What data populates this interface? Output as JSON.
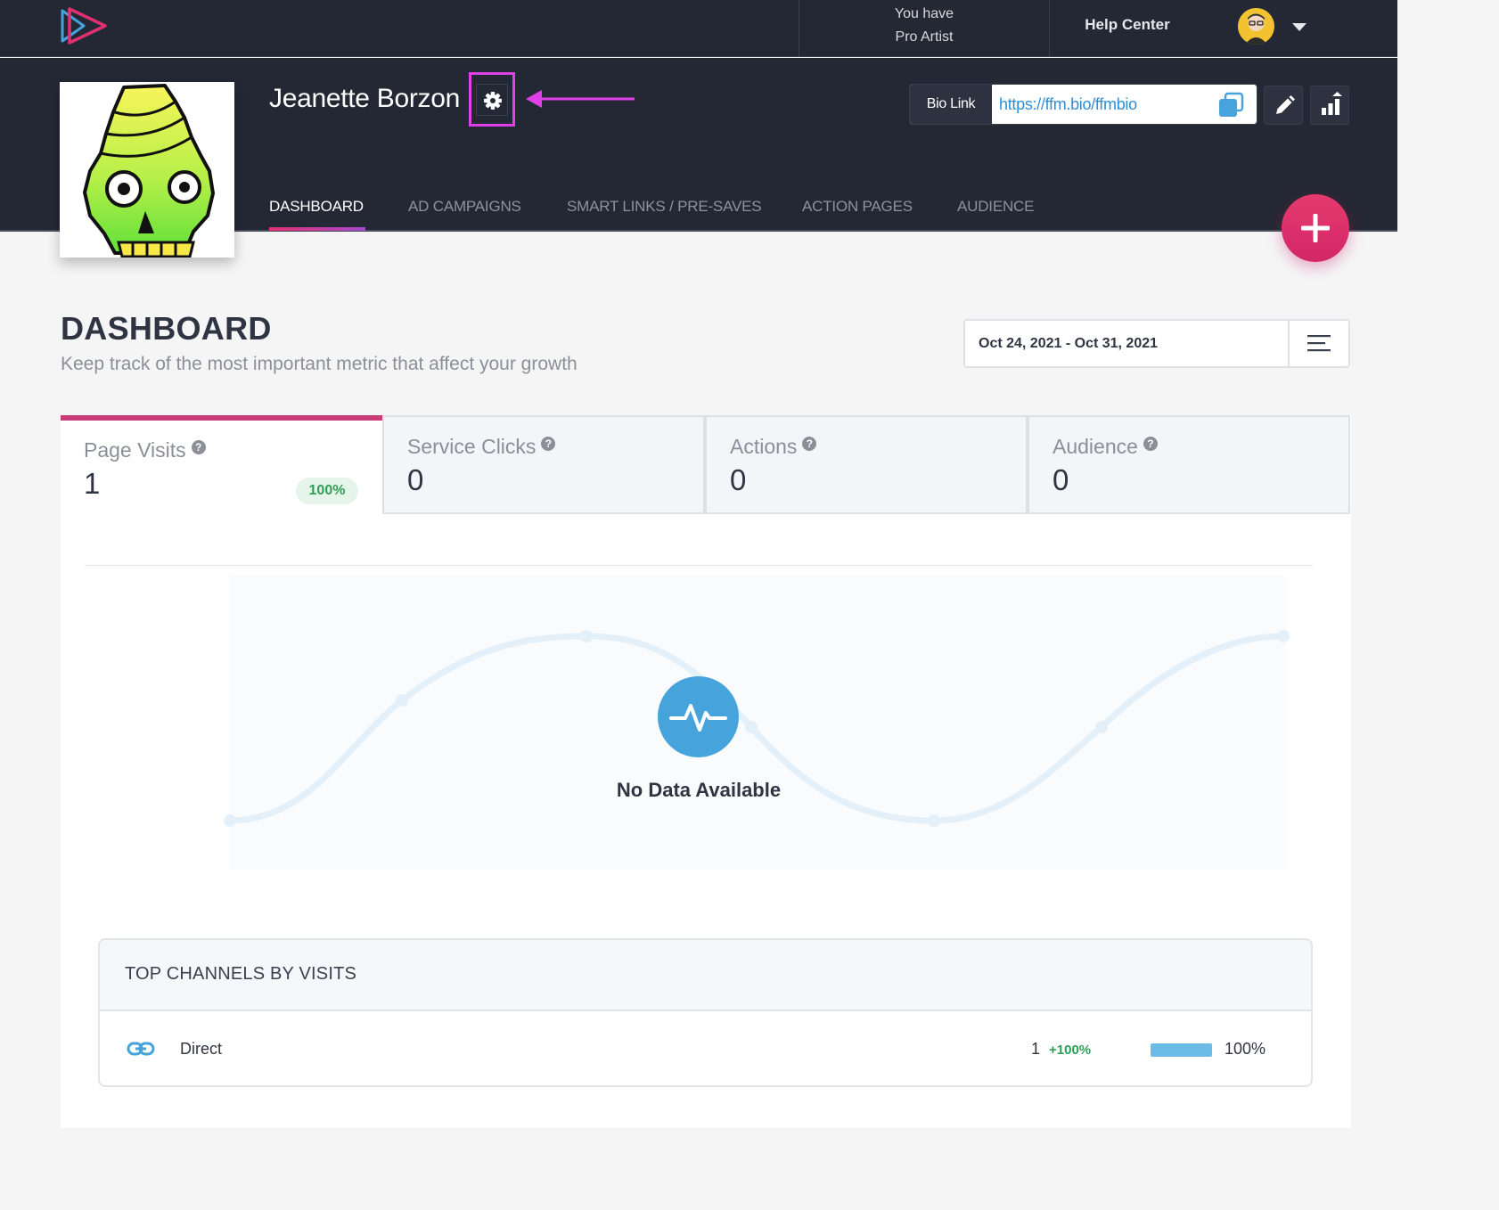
{
  "topbar": {
    "plan_line1": "You have",
    "plan_line2": "Pro Artist",
    "help_label": "Help Center",
    "colors": {
      "background": "#242834",
      "logo_pink": "#e0306f",
      "logo_blue": "#46a3dc"
    }
  },
  "artist": {
    "name": "Jeanette Borzon"
  },
  "biolink": {
    "label": "Bio Link",
    "url": "https://ffm.bio/ffmbio"
  },
  "tabs": [
    {
      "label": "DASHBOARD",
      "active": true
    },
    {
      "label": "AD CAMPAIGNS",
      "active": false
    },
    {
      "label": "SMART LINKS / PRE-SAVES",
      "active": false
    },
    {
      "label": "ACTION PAGES",
      "active": false
    },
    {
      "label": "AUDIENCE",
      "active": false
    }
  ],
  "dashboard": {
    "title": "DASHBOARD",
    "subtitle": "Keep track of the most important metric that affect your growth",
    "date_range": "Oct 24, 2021 - Oct 31, 2021"
  },
  "stats": [
    {
      "name": "Page Visits",
      "value": "1",
      "change": "100%",
      "active": true
    },
    {
      "name": "Service Clicks",
      "value": "0",
      "active": false
    },
    {
      "name": "Actions",
      "value": "0",
      "active": false
    },
    {
      "name": "Audience",
      "value": "0",
      "active": false
    }
  ],
  "chart": {
    "empty_message": "No Data Available"
  },
  "channels": {
    "title": "TOP CHANNELS BY VISITS",
    "rows": [
      {
        "icon": "link-icon",
        "name": "Direct",
        "count": "1",
        "change": "+100%",
        "share": 100,
        "share_label": "100%"
      }
    ]
  },
  "icons": {
    "settings": "gear-icon",
    "copy": "copy-icon",
    "edit": "pencil-icon",
    "stats": "bar-chart-icon",
    "add": "plus-icon",
    "menu": "menu-icon",
    "avatar_caret": "chevron-down-icon",
    "empty_chart": "pulse-icon"
  },
  "accent_colors": {
    "primary_pink": "#d22767",
    "link_blue": "#2f8fd6",
    "positive_green": "#2e9e55",
    "annotation_magenta": "#e040e8"
  }
}
